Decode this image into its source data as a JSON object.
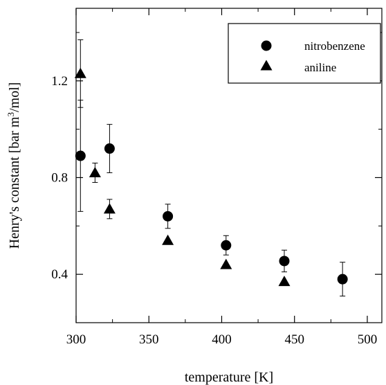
{
  "chart_data": {
    "type": "scatter",
    "title": "",
    "xlabel": "temperature [K]",
    "ylabel_main": "Henry's constant [bar m",
    "ylabel_sup": "3",
    "ylabel_end": "/mol]",
    "xlim": [
      300,
      510
    ],
    "ylim": [
      0.2,
      1.5
    ],
    "xticks": [
      300,
      350,
      400,
      450,
      500
    ],
    "xtick_labels": [
      "300",
      "350",
      "400",
      "450",
      "500"
    ],
    "yticks": [
      0.4,
      0.8,
      1.2
    ],
    "ytick_labels": [
      "0.4",
      "0.8",
      "1.2"
    ],
    "grid": false,
    "legend_position": "top-right",
    "series": [
      {
        "name": "nitrobenzene",
        "marker": "circle",
        "color": "#000000",
        "points": [
          {
            "x": 303,
            "y": 0.89,
            "err_low": 0.66,
            "err_high": 1.12
          },
          {
            "x": 323,
            "y": 0.92,
            "err_low": 0.82,
            "err_high": 1.02
          },
          {
            "x": 363,
            "y": 0.64,
            "err_low": 0.59,
            "err_high": 0.69
          },
          {
            "x": 403,
            "y": 0.52,
            "err_low": 0.48,
            "err_high": 0.56
          },
          {
            "x": 443,
            "y": 0.455,
            "err_low": 0.41,
            "err_high": 0.5
          },
          {
            "x": 483,
            "y": 0.38,
            "err_low": 0.31,
            "err_high": 0.45
          }
        ]
      },
      {
        "name": "aniline",
        "marker": "triangle",
        "color": "#000000",
        "points": [
          {
            "x": 303,
            "y": 1.23,
            "err_low": 1.09,
            "err_high": 1.37
          },
          {
            "x": 313,
            "y": 0.82,
            "err_low": 0.78,
            "err_high": 0.86
          },
          {
            "x": 323,
            "y": 0.67,
            "err_low": 0.63,
            "err_high": 0.71
          },
          {
            "x": 363,
            "y": 0.54
          },
          {
            "x": 403,
            "y": 0.44
          },
          {
            "x": 443,
            "y": 0.37
          }
        ]
      }
    ]
  }
}
